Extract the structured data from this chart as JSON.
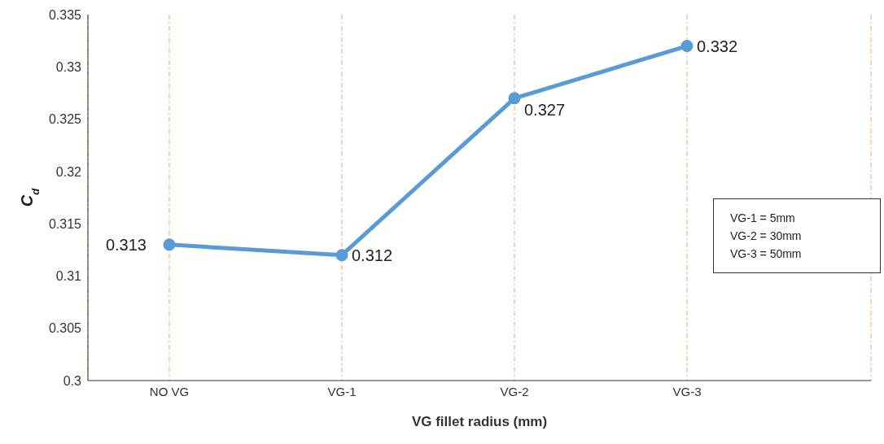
{
  "chart_data": {
    "type": "line",
    "xlabel": "VG fillet radius (mm)",
    "ylabel": "C$_{d}$",
    "categories": [
      "NO VG",
      "VG-1",
      "VG-2",
      "VG-3"
    ],
    "series": [
      {
        "color": "#5b9bd5",
        "values": [
          0.313,
          0.312,
          0.327,
          0.332
        ]
      }
    ],
    "ylim": [
      0.3,
      0.335
    ],
    "yticks": [
      0.3,
      0.305,
      0.31,
      0.315,
      0.32,
      0.325,
      0.33,
      0.335
    ],
    "grid": "x",
    "marker": "circle",
    "line_style": "solid",
    "data_labels": true,
    "legend": false,
    "annotations": [
      "VG-1 = 5mm",
      "VG-2 = 30mm",
      "VG-3 = 50mm"
    ]
  }
}
